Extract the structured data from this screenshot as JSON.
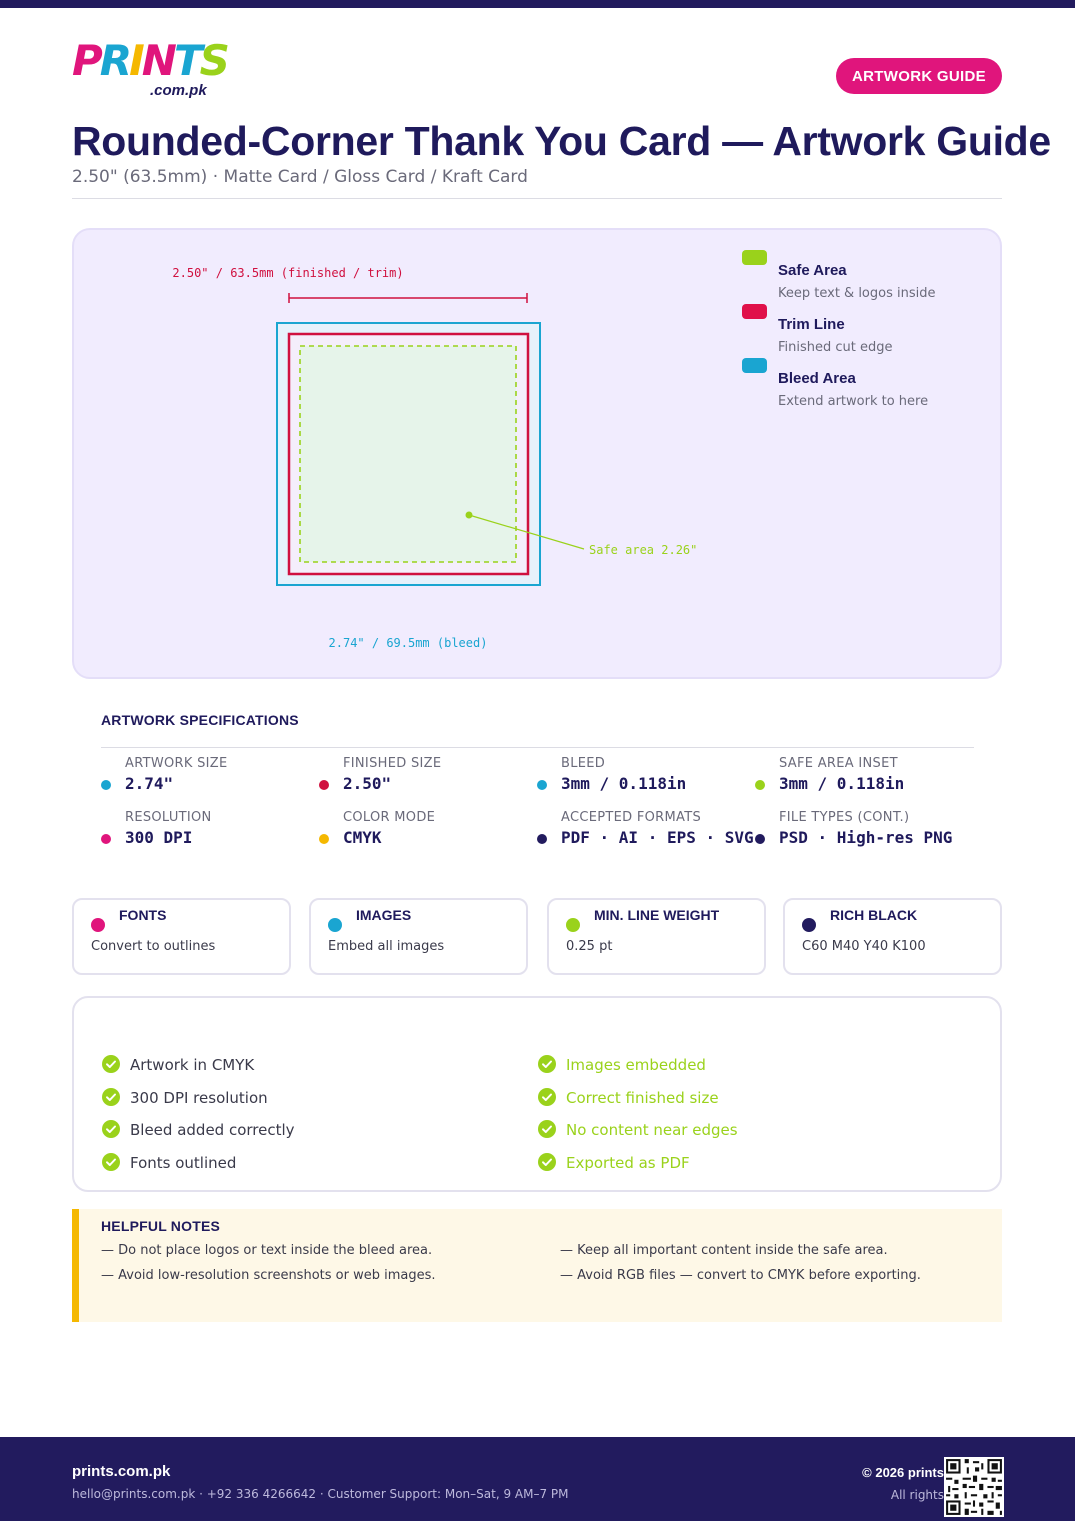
{
  "brand": {
    "logo_letters": [
      "P",
      "R",
      "I",
      "N",
      "T",
      "S"
    ],
    "logo_letter_colors": [
      "#e0157c",
      "#1aa5d1",
      "#f5b800",
      "#e0157c",
      "#1aa5d1",
      "#9ad21b"
    ],
    "logo_domain": ".com.pk"
  },
  "header": {
    "badge": "ARTWORK GUIDE",
    "title": "Rounded-Corner Thank You Card — Artwork Guide",
    "subtitle": "2.50\" (63.5mm) · Matte Card / Gloss Card / Kraft Card"
  },
  "diagram": {
    "trim_label": "2.50\" / 63.5mm (finished / trim)",
    "bleed_label": "2.74\" / 69.5mm (bleed)",
    "safe_label": "Safe area 2.26\"",
    "colors": {
      "safe": "#9ad21b",
      "trim": "#d0103f",
      "bleed": "#1aa5d1"
    }
  },
  "legend": [
    {
      "title": "Safe Area",
      "desc": "Keep text & logos inside",
      "color": "#9ad21b"
    },
    {
      "title": "Trim Line",
      "desc": "Finished cut edge",
      "color": "#e0104a"
    },
    {
      "title": "Bleed Area",
      "desc": "Extend artwork to here",
      "color": "#1aa5d1"
    }
  ],
  "specs": {
    "title": "ARTWORK SPECIFICATIONS",
    "items": [
      {
        "label": "ARTWORK SIZE",
        "value": "2.74\"",
        "color": "#1aa5d1"
      },
      {
        "label": "FINISHED SIZE",
        "value": "2.50\"",
        "color": "#d0103f"
      },
      {
        "label": "BLEED",
        "value": "3mm / 0.118in",
        "color": "#1aa5d1"
      },
      {
        "label": "SAFE AREA INSET",
        "value": "3mm / 0.118in",
        "color": "#9ad21b"
      },
      {
        "label": "RESOLUTION",
        "value": "300 DPI",
        "color": "#e0157c"
      },
      {
        "label": "COLOR MODE",
        "value": "CMYK",
        "color": "#f5b800"
      },
      {
        "label": "ACCEPTED FORMATS",
        "value": "PDF · AI · EPS · SVG",
        "color": "#221b5e"
      },
      {
        "label": "FILE TYPES (CONT.)",
        "value": "PSD · High-res PNG",
        "color": "#221b5e"
      }
    ]
  },
  "cards": [
    {
      "title": "FONTS",
      "desc": "Convert to outlines",
      "color": "#e0157c"
    },
    {
      "title": "IMAGES",
      "desc": "Embed all images",
      "color": "#1aa5d1"
    },
    {
      "title": "MIN. LINE WEIGHT",
      "desc": "0.25 pt",
      "color": "#9ad21b"
    },
    {
      "title": "RICH BLACK",
      "desc": "C60 M40 Y40 K100",
      "color": "#221b5e"
    }
  ],
  "checklist": {
    "left": [
      "Artwork in CMYK",
      "300 DPI resolution",
      "Bleed added correctly",
      "Fonts outlined"
    ],
    "right": [
      "Images embedded",
      "Correct finished size",
      "No content near edges",
      "Exported as PDF"
    ],
    "check_color": "#9ad21b"
  },
  "notes": {
    "title": "HELPFUL NOTES",
    "items": [
      "— Do not place logos or text inside the bleed area.",
      "— Keep all important content inside the safe area.",
      "— Avoid low-resolution screenshots or web images.",
      "— Avoid RGB files — convert to CMYK before exporting."
    ]
  },
  "footer": {
    "brand": "prints.com.pk",
    "contact": "hello@prints.com.pk · +92 336 4266642 · Customer Support: Mon–Sat, 9 AM–7 PM",
    "copyright": "© 2026 prints",
    "rights": "All rights"
  }
}
